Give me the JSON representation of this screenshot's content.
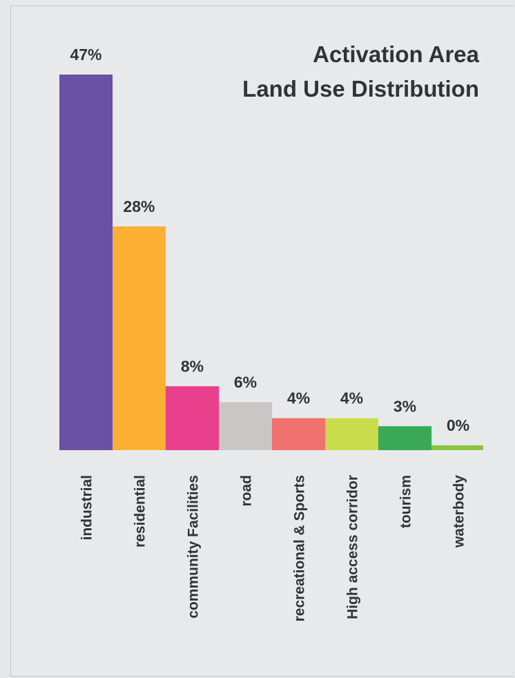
{
  "chart_data": {
    "type": "bar",
    "title_lines": [
      "Activation Area",
      "Land Use Distribution"
    ],
    "xlabel": "",
    "ylabel": "",
    "categories": [
      "industrial",
      "residential",
      "community Facilities",
      "road",
      "recreational & Sports",
      "High access corridor",
      "tourism",
      "waterbody"
    ],
    "values": [
      47,
      28,
      8,
      6,
      4,
      4,
      3,
      0
    ],
    "value_labels": [
      "47%",
      "28%",
      "8%",
      "6%",
      "4%",
      "4%",
      "3%",
      "0%"
    ],
    "colors": [
      "#6a51a3",
      "#fbb034",
      "#e8408c",
      "#c9c6c6",
      "#ef726f",
      "#c9dc4b",
      "#3aa855",
      "#8cc63f"
    ],
    "grid": false,
    "legend": "none"
  }
}
